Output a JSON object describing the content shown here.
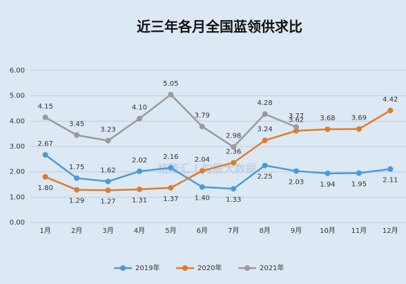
{
  "chart_data": {
    "type": "line",
    "title": "近三年各月全国蓝领供求比",
    "watermark": "格隆汇 | 勾股大数据",
    "categories": [
      "1月",
      "2月",
      "3月",
      "4月",
      "5月",
      "6月",
      "7月",
      "8月",
      "9月",
      "10月",
      "11月",
      "12月"
    ],
    "series": [
      {
        "name": "2019年",
        "color": "#4a9ad8",
        "values": [
          2.67,
          1.75,
          1.62,
          2.02,
          2.16,
          1.4,
          1.33,
          2.25,
          2.03,
          1.94,
          1.95,
          2.11
        ],
        "value_labels": [
          "2.67",
          "1.75",
          "1.62",
          "2.02",
          "2.16",
          "1.40",
          "1.33",
          "2.25",
          "2.03",
          "1.94",
          "1.95",
          "2.11"
        ]
      },
      {
        "name": "2020年",
        "color": "#e07b2a",
        "values": [
          1.8,
          1.29,
          1.27,
          1.31,
          1.37,
          2.04,
          2.36,
          3.24,
          3.62,
          3.68,
          3.69,
          4.42
        ],
        "value_labels": [
          "1.80",
          "1.29",
          "1.27",
          "1.31",
          "1.37",
          "2.04",
          "2.36",
          "3.24",
          "3.62",
          "3.68",
          "3.69",
          "4.42"
        ]
      },
      {
        "name": "2021年",
        "color": "#9a9a9a",
        "values": [
          4.15,
          3.45,
          3.23,
          4.1,
          5.05,
          3.79,
          2.98,
          4.28,
          3.77,
          null,
          null,
          null
        ],
        "value_labels": [
          "4.15",
          "3.45",
          "3.23",
          "4.10",
          "5.05",
          "3.79",
          "2.98",
          "4.28",
          "3.77",
          null,
          null,
          null
        ]
      }
    ],
    "ylim": [
      0,
      6
    ],
    "yticks": [
      {
        "value": 0,
        "label": "0.00"
      },
      {
        "value": 1,
        "label": "1.00"
      },
      {
        "value": 2,
        "label": "2.00"
      },
      {
        "value": 3,
        "label": "3.00"
      },
      {
        "value": 4,
        "label": "4.00"
      },
      {
        "value": 5,
        "label": "5.00"
      },
      {
        "value": 6,
        "label": "6.00"
      }
    ],
    "grid": true,
    "legend": "bottom"
  }
}
